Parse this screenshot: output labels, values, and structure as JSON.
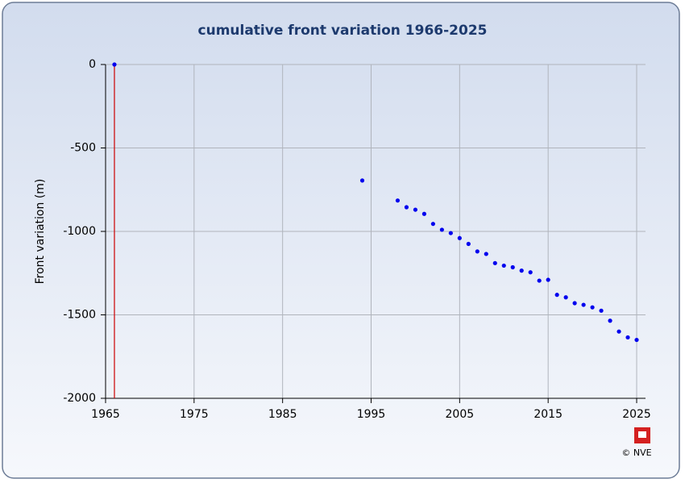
{
  "chart_data": {
    "type": "scatter",
    "title": "cumulative front variation 1966-2025",
    "y_label": "Front variation (m)",
    "x": [
      1966,
      1994,
      1998,
      1999,
      2000,
      2001,
      2002,
      2003,
      2004,
      2005,
      2006,
      2007,
      2008,
      2009,
      2010,
      2011,
      2012,
      2013,
      2014,
      2015,
      2016,
      2017,
      2018,
      2019,
      2020,
      2021,
      2022,
      2023,
      2024,
      2025
    ],
    "values": [
      0,
      -695,
      -815,
      -855,
      -870,
      -895,
      -955,
      -990,
      -1010,
      -1040,
      -1075,
      -1120,
      -1135,
      -1190,
      -1205,
      -1215,
      -1235,
      -1245,
      -1295,
      -1290,
      -1380,
      -1395,
      -1430,
      -1440,
      -1455,
      -1475,
      -1535,
      -1600,
      -1635,
      -1650
    ],
    "color": "#0000ee",
    "reference_line": {
      "x": 1966,
      "color": "#cc0000"
    },
    "xlim": [
      1965,
      2026
    ],
    "xticks": [
      1965,
      1975,
      1985,
      1995,
      2005,
      2015,
      2025
    ],
    "ylim": [
      -2000,
      0
    ],
    "yticks": [
      0,
      -500,
      -1000,
      -1500,
      -2000
    ],
    "grid": true,
    "credit": "© NVE"
  }
}
